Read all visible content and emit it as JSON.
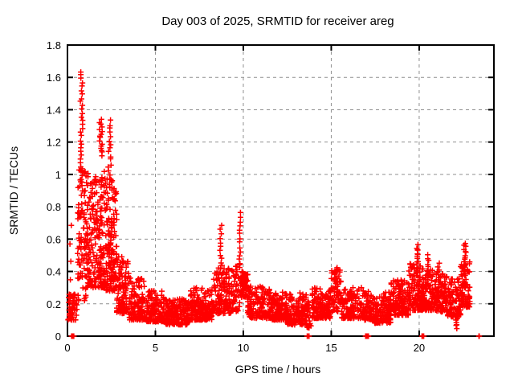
{
  "title": "Day 003 of 2025, SRMTID for receiver areg",
  "axes": {
    "xlabel": "GPS time / hours",
    "ylabel": "SRMTID / TECUs",
    "x_tick_labels": [
      "0",
      "5",
      "10",
      "15",
      "20"
    ],
    "y_tick_labels": [
      "0",
      "0.2",
      "0.4",
      "0.6",
      "0.8",
      "1",
      "1.2",
      "1.4",
      "1.6",
      "1.8"
    ]
  },
  "colors": {
    "marker": "#ff0000",
    "grid": "#909090",
    "border": "#000000",
    "background": "#ffffff"
  },
  "chart_data": {
    "type": "scatter",
    "marker": "+",
    "marker_color": "#ff0000",
    "title": "Day 003 of 2025, SRMTID for receiver areg",
    "xlabel": "GPS time / hours",
    "ylabel": "SRMTID / TECUs",
    "xlim": [
      0,
      24.25
    ],
    "ylim": [
      0,
      1.8
    ],
    "x_ticks": [
      0,
      5,
      10,
      15,
      20
    ],
    "y_ticks": [
      0,
      0.2,
      0.4,
      0.6,
      0.8,
      1.0,
      1.2,
      1.4,
      1.6,
      1.8
    ],
    "grid": true,
    "grid_style": "dashed",
    "legend": "none",
    "seed": 7,
    "description": "Dense time series of SRMTID (slant rate of TEC, TID index) vs GPS time for receiver areg, day 003 of 2025. Strong ionospheric disturbance 0.6-3.3 h peaking at ~1.63 TECUs near 0.8 h, decaying to a ~0.1-0.3 TECU baseline; secondary spikes to ~0.68 at 8.7 h and ~0.76 at 9.8 h; mild activity rise after 19.5 h with spikes to ~0.56 near 19.9 h and ~0.58 near 22.6 h; data ends ~23 h.",
    "bands_format": "[x_start_h, x_end_h, n_points, y_min, y_max, concentration_exponent]",
    "bands": [
      [
        0.03,
        0.55,
        60,
        0.1,
        0.26,
        1.5
      ],
      [
        0.55,
        1.05,
        80,
        0.22,
        1.05,
        1.3
      ],
      [
        1.05,
        2.15,
        220,
        0.3,
        1.02,
        1.7
      ],
      [
        2.15,
        2.8,
        150,
        0.28,
        0.98,
        1.7
      ],
      [
        2.8,
        3.5,
        120,
        0.14,
        0.5,
        1.6
      ],
      [
        3.5,
        4.5,
        140,
        0.1,
        0.36,
        1.8
      ],
      [
        4.5,
        5.5,
        140,
        0.09,
        0.28,
        1.7
      ],
      [
        5.5,
        7.0,
        190,
        0.07,
        0.23,
        1.5
      ],
      [
        7.0,
        8.3,
        180,
        0.1,
        0.3,
        1.7
      ],
      [
        8.3,
        9.3,
        130,
        0.14,
        0.44,
        1.6
      ],
      [
        9.3,
        9.8,
        60,
        0.15,
        0.46,
        1.4
      ],
      [
        9.85,
        10.25,
        70,
        0.24,
        0.4,
        1.1
      ],
      [
        10.25,
        11.5,
        150,
        0.11,
        0.31,
        1.6
      ],
      [
        11.5,
        12.5,
        140,
        0.1,
        0.28,
        1.6
      ],
      [
        12.5,
        13.6,
        140,
        0.07,
        0.27,
        1.5
      ],
      [
        13.6,
        13.9,
        25,
        0.05,
        0.22,
        1.2
      ],
      [
        13.9,
        15.0,
        150,
        0.11,
        0.3,
        1.6
      ],
      [
        15.0,
        15.6,
        70,
        0.15,
        0.42,
        1.5
      ],
      [
        15.6,
        16.9,
        150,
        0.11,
        0.31,
        1.6
      ],
      [
        16.9,
        17.4,
        60,
        0.1,
        0.28,
        1.5
      ],
      [
        17.4,
        18.4,
        130,
        0.08,
        0.28,
        1.5
      ],
      [
        18.4,
        19.4,
        140,
        0.13,
        0.35,
        1.6
      ],
      [
        19.4,
        20.1,
        100,
        0.16,
        0.45,
        1.5
      ],
      [
        20.1,
        21.0,
        130,
        0.16,
        0.42,
        1.5
      ],
      [
        21.0,
        21.6,
        80,
        0.15,
        0.4,
        1.5
      ],
      [
        21.6,
        22.35,
        100,
        0.12,
        0.36,
        1.5
      ],
      [
        22.35,
        22.9,
        80,
        0.18,
        0.46,
        1.3
      ]
    ],
    "spikes_format": "[x_center_h, x_width_h, n_points, y_min, y_max]",
    "spikes": [
      [
        0.18,
        0.1,
        4,
        0.35,
        0.68
      ],
      [
        0.8,
        0.14,
        30,
        0.95,
        1.64
      ],
      [
        1.9,
        0.16,
        16,
        1.12,
        1.34
      ],
      [
        2.4,
        0.18,
        18,
        0.92,
        1.33
      ],
      [
        8.72,
        0.1,
        12,
        0.4,
        0.68
      ],
      [
        9.8,
        0.08,
        14,
        0.42,
        0.76
      ],
      [
        15.25,
        0.2,
        10,
        0.3,
        0.42
      ],
      [
        19.9,
        0.1,
        16,
        0.38,
        0.56
      ],
      [
        20.5,
        0.08,
        10,
        0.33,
        0.5
      ],
      [
        21.1,
        0.1,
        8,
        0.3,
        0.45
      ],
      [
        22.1,
        0.15,
        8,
        0.05,
        0.14
      ],
      [
        22.6,
        0.12,
        16,
        0.38,
        0.58
      ]
    ],
    "zeros_format": "[x_center_h, x_width_h, n_points] at y=0 on the axis",
    "zeros": [
      [
        0.25,
        0.06,
        3
      ],
      [
        0.34,
        0.04,
        2
      ],
      [
        13.63,
        0.05,
        3
      ],
      [
        13.73,
        0.04,
        2
      ],
      [
        17.05,
        0.2,
        8
      ],
      [
        20.2,
        0.12,
        7
      ],
      [
        23.4,
        0.08,
        4
      ]
    ],
    "notable_points": {
      "max": {
        "x": 0.8,
        "y": 1.63
      },
      "secondary_peak_1": {
        "x": 8.7,
        "y": 0.68
      },
      "secondary_peak_2": {
        "x": 9.8,
        "y": 0.76
      },
      "evening_peak_1": {
        "x": 19.9,
        "y": 0.56
      },
      "evening_peak_2": {
        "x": 22.6,
        "y": 0.58
      }
    }
  }
}
